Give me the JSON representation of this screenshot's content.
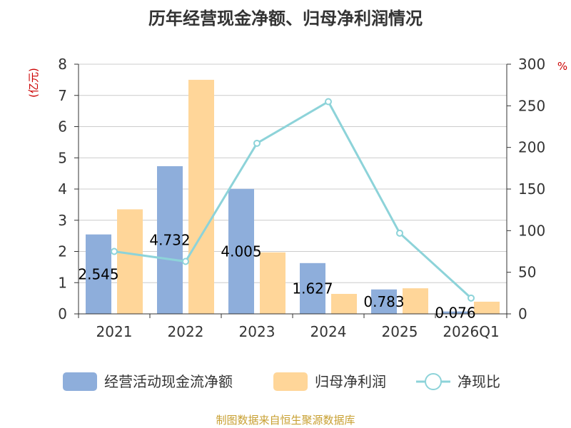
{
  "chart_data": {
    "type": "bar",
    "title": "历年经营现金净额、归母净利润情况",
    "categories": [
      "2021",
      "2022",
      "2023",
      "2024",
      "2025",
      "2026Q1"
    ],
    "left_axis": {
      "unit": "(亿元)",
      "min": 0,
      "max": 8,
      "step": 1
    },
    "right_axis": {
      "unit": "%",
      "min": 0,
      "max": 300,
      "step": 50
    },
    "series": [
      {
        "name": "经营活动现金流净额",
        "kind": "bar",
        "axis": "left",
        "color": "#8eaedb",
        "values": [
          2.545,
          4.732,
          4.005,
          1.627,
          0.783,
          0.076
        ],
        "labels": [
          "2.545",
          "4.732",
          "4.005",
          "1.627",
          "0.783",
          "0.076"
        ]
      },
      {
        "name": "归母净利润",
        "kind": "bar",
        "axis": "left",
        "color": "#ffd699",
        "values": [
          3.35,
          7.5,
          1.97,
          0.64,
          0.82,
          0.39
        ]
      },
      {
        "name": "净现比",
        "kind": "line",
        "axis": "right",
        "color": "#8dd3d9",
        "values": [
          75,
          63,
          205,
          255,
          97,
          19
        ]
      }
    ],
    "grid": true,
    "legend": "bottom",
    "source": "制图数据来自恒生聚源数据库"
  }
}
